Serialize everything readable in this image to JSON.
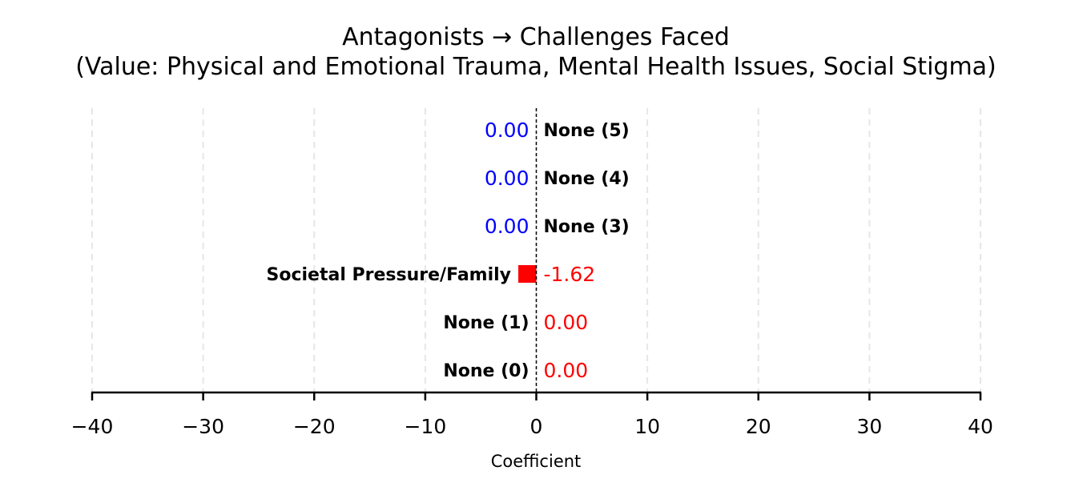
{
  "chart_data": {
    "type": "bar",
    "orientation": "horizontal",
    "title": "Antagonists → Challenges Faced",
    "subtitle": "(Value: Physical and Emotional Trauma, Mental Health Issues, Social Stigma)",
    "xlabel": "Coefficient",
    "ylabel": "",
    "xlim": [
      -40,
      40
    ],
    "x_ticks": [
      -40,
      -30,
      -20,
      -10,
      0,
      10,
      20,
      30,
      40
    ],
    "x_tick_labels": [
      "−40",
      "−30",
      "−20",
      "−10",
      "0",
      "10",
      "20",
      "30",
      "40"
    ],
    "grid": "vertical dashed",
    "bars": [
      {
        "category": "None (0)",
        "value": 0.0,
        "value_label": "0.00",
        "bar_color": "#ff0000",
        "value_color": "#ff0000",
        "side": "left"
      },
      {
        "category": "None (1)",
        "value": 0.0,
        "value_label": "0.00",
        "bar_color": "#ff0000",
        "value_color": "#ff0000",
        "side": "left"
      },
      {
        "category": "Societal Pressure/Family",
        "value": -1.62,
        "value_label": "-1.62",
        "bar_color": "#ff0000",
        "value_color": "#ff0000",
        "side": "left"
      },
      {
        "category": "None (3)",
        "value": 0.0,
        "value_label": "0.00",
        "bar_color": "#0000ff",
        "value_color": "#0000ff",
        "side": "right"
      },
      {
        "category": "None (4)",
        "value": 0.0,
        "value_label": "0.00",
        "bar_color": "#0000ff",
        "value_color": "#0000ff",
        "side": "right"
      },
      {
        "category": "None (5)",
        "value": 0.0,
        "value_label": "0.00",
        "bar_color": "#0000ff",
        "value_color": "#0000ff",
        "side": "right"
      }
    ]
  }
}
